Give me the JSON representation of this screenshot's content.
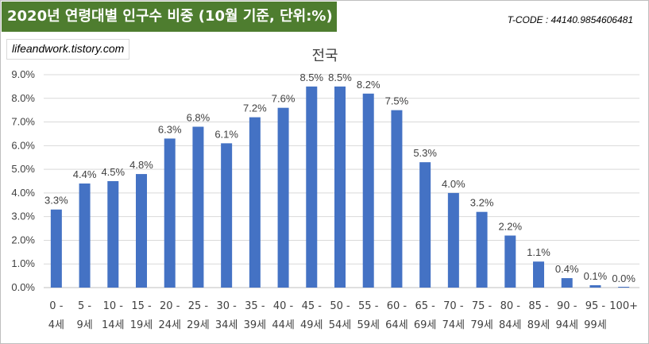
{
  "header": {
    "title": "2020년 연령대별 인구수 비중 (10월 기준, 단위:%)",
    "tcode": "T-CODE : 44140.9854606481",
    "blog": "lifeandwork.tistory.com"
  },
  "colors": {
    "banner": "#4e7d2f",
    "bar": "#4472c4",
    "grid": "#d9d9d9"
  },
  "chart_data": {
    "type": "bar",
    "title": "전국",
    "xlabel": "",
    "ylabel": "",
    "ylim": [
      0,
      9
    ],
    "ytick_step": 1,
    "ytick_labels": [
      "0.0%",
      "1.0%",
      "2.0%",
      "3.0%",
      "4.0%",
      "5.0%",
      "6.0%",
      "7.0%",
      "8.0%",
      "9.0%"
    ],
    "grid": true,
    "categories": [
      [
        "0 -",
        "4세"
      ],
      [
        "5 -",
        "9세"
      ],
      [
        "10 -",
        "14세"
      ],
      [
        "15 -",
        "19세"
      ],
      [
        "20 -",
        "24세"
      ],
      [
        "25 -",
        "29세"
      ],
      [
        "30 -",
        "34세"
      ],
      [
        "35 -",
        "39세"
      ],
      [
        "40 -",
        "44세"
      ],
      [
        "45 -",
        "49세"
      ],
      [
        "50 -",
        "54세"
      ],
      [
        "55 -",
        "59세"
      ],
      [
        "60 -",
        "64세"
      ],
      [
        "65 -",
        "69세"
      ],
      [
        "70 -",
        "74세"
      ],
      [
        "75 -",
        "79세"
      ],
      [
        "80 -",
        "84세"
      ],
      [
        "85 -",
        "89세"
      ],
      [
        "90 -",
        "94세"
      ],
      [
        "95 -",
        "99세"
      ],
      [
        "100+",
        ""
      ]
    ],
    "values": [
      3.3,
      4.4,
      4.5,
      4.8,
      6.3,
      6.8,
      6.1,
      7.2,
      7.6,
      8.5,
      8.5,
      8.2,
      7.5,
      5.3,
      4.0,
      3.2,
      2.2,
      1.1,
      0.4,
      0.1,
      0.0
    ],
    "value_labels": [
      "3.3%",
      "4.4%",
      "4.5%",
      "4.8%",
      "6.3%",
      "6.8%",
      "6.1%",
      "7.2%",
      "7.6%",
      "8.5%",
      "8.5%",
      "8.2%",
      "7.5%",
      "5.3%",
      "4.0%",
      "3.2%",
      "2.2%",
      "1.1%",
      "0.4%",
      "0.1%",
      "0.0%"
    ]
  }
}
